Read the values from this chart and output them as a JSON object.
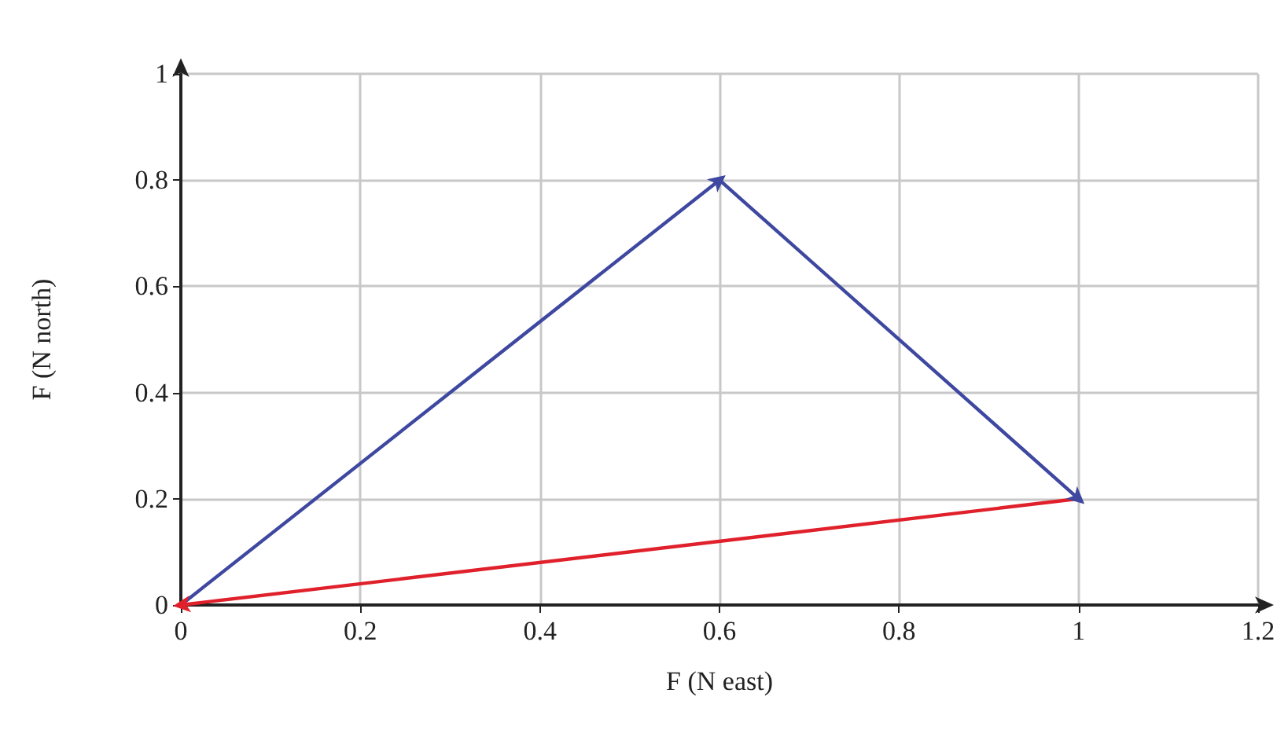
{
  "chart_data": {
    "type": "line",
    "xlabel": "F (N east)",
    "ylabel": "F (N north)",
    "series": [
      {
        "color": "#3f48a0",
        "x": [
          0,
          0.6,
          1
        ],
        "values": [
          0,
          0.8,
          0.2
        ]
      },
      {
        "color": "#e0202a",
        "x": [
          1,
          0
        ],
        "values": [
          0.2,
          0
        ]
      }
    ],
    "xlim": [
      0,
      1.2
    ],
    "xticks": [
      0,
      0.2,
      0.4,
      0.6,
      0.8,
      1,
      1.2
    ],
    "ylim": [
      0,
      1
    ],
    "yticks": [
      0,
      0.2,
      0.4,
      0.6,
      0.8,
      1
    ],
    "grid": true
  }
}
